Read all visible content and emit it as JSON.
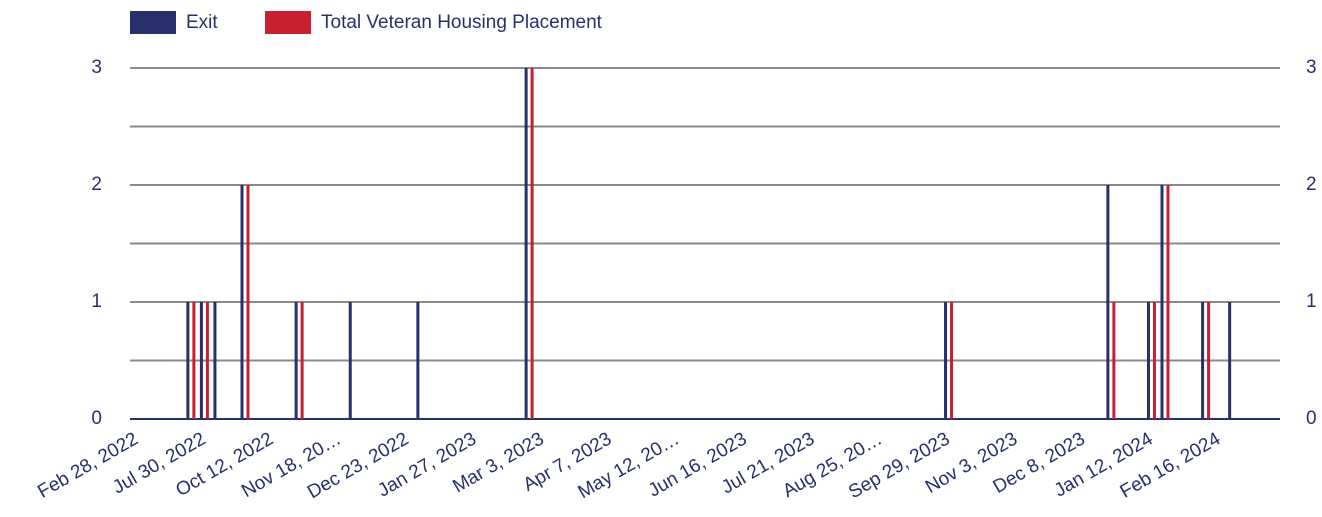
{
  "chart_data": {
    "type": "bar",
    "categories": [
      "Feb 28, 2022",
      null,
      null,
      null,
      null,
      "Jul 30, 2022",
      null,
      null,
      null,
      null,
      "Oct 12, 2022",
      null,
      null,
      null,
      null,
      "Nov 18, 20…",
      null,
      null,
      null,
      null,
      "Dec 23, 2022",
      null,
      null,
      null,
      null,
      "Jan 27, 2023",
      null,
      null,
      null,
      null,
      "Mar 3, 2023",
      null,
      null,
      null,
      null,
      "Apr 7, 2023",
      null,
      null,
      null,
      null,
      "May 12, 20…",
      null,
      null,
      null,
      null,
      "Jun 16, 2023",
      null,
      null,
      null,
      null,
      "Jul 21, 2023",
      null,
      null,
      null,
      null,
      "Aug 25, 20…",
      null,
      null,
      null,
      null,
      "Sep 29, 2023",
      null,
      null,
      null,
      null,
      "Nov 3, 2023",
      null,
      null,
      null,
      null,
      "Dec 8, 2023",
      null,
      null,
      null,
      null,
      "Jan 12, 2024",
      null,
      null,
      null,
      null,
      "Feb 16, 2024",
      null,
      null,
      null,
      null
    ],
    "series": [
      {
        "name": "Exit",
        "color": "#27306b",
        "values": [
          0,
          0,
          0,
          0,
          1,
          1,
          1,
          0,
          2,
          0,
          0,
          0,
          1,
          0,
          0,
          0,
          1,
          0,
          0,
          0,
          0,
          1,
          0,
          0,
          0,
          0,
          0,
          0,
          0,
          3,
          0,
          0,
          0,
          0,
          0,
          0,
          0,
          0,
          0,
          0,
          0,
          0,
          0,
          0,
          0,
          0,
          0,
          0,
          0,
          0,
          0,
          0,
          0,
          0,
          0,
          0,
          0,
          0,
          0,
          0,
          1,
          0,
          0,
          0,
          0,
          0,
          0,
          0,
          0,
          0,
          0,
          0,
          2,
          0,
          0,
          1,
          2,
          0,
          0,
          1,
          0,
          1,
          0,
          0,
          0
        ]
      },
      {
        "name": "Total Veteran Housing Placement",
        "color": "#c8202f",
        "values": [
          0,
          0,
          0,
          0,
          1,
          1,
          0,
          0,
          2,
          0,
          0,
          0,
          1,
          0,
          0,
          0,
          0,
          0,
          0,
          0,
          0,
          0,
          0,
          0,
          0,
          0,
          0,
          0,
          0,
          3,
          0,
          0,
          0,
          0,
          0,
          0,
          0,
          0,
          0,
          0,
          0,
          0,
          0,
          0,
          0,
          0,
          0,
          0,
          0,
          0,
          0,
          0,
          0,
          0,
          0,
          0,
          0,
          0,
          0,
          0,
          1,
          0,
          0,
          0,
          0,
          0,
          0,
          0,
          0,
          0,
          0,
          0,
          1,
          0,
          0,
          1,
          2,
          0,
          0,
          1,
          0,
          0,
          0,
          0,
          0
        ]
      }
    ],
    "ylim": [
      0,
      3
    ],
    "yticks": [
      0,
      1,
      2,
      3
    ],
    "minor_yticks": [
      0.5,
      1.5,
      2.5
    ],
    "y2lim": [
      0,
      3
    ],
    "y2ticks": [
      0,
      1,
      2,
      3
    ],
    "grid": true,
    "legend": "top-left"
  }
}
